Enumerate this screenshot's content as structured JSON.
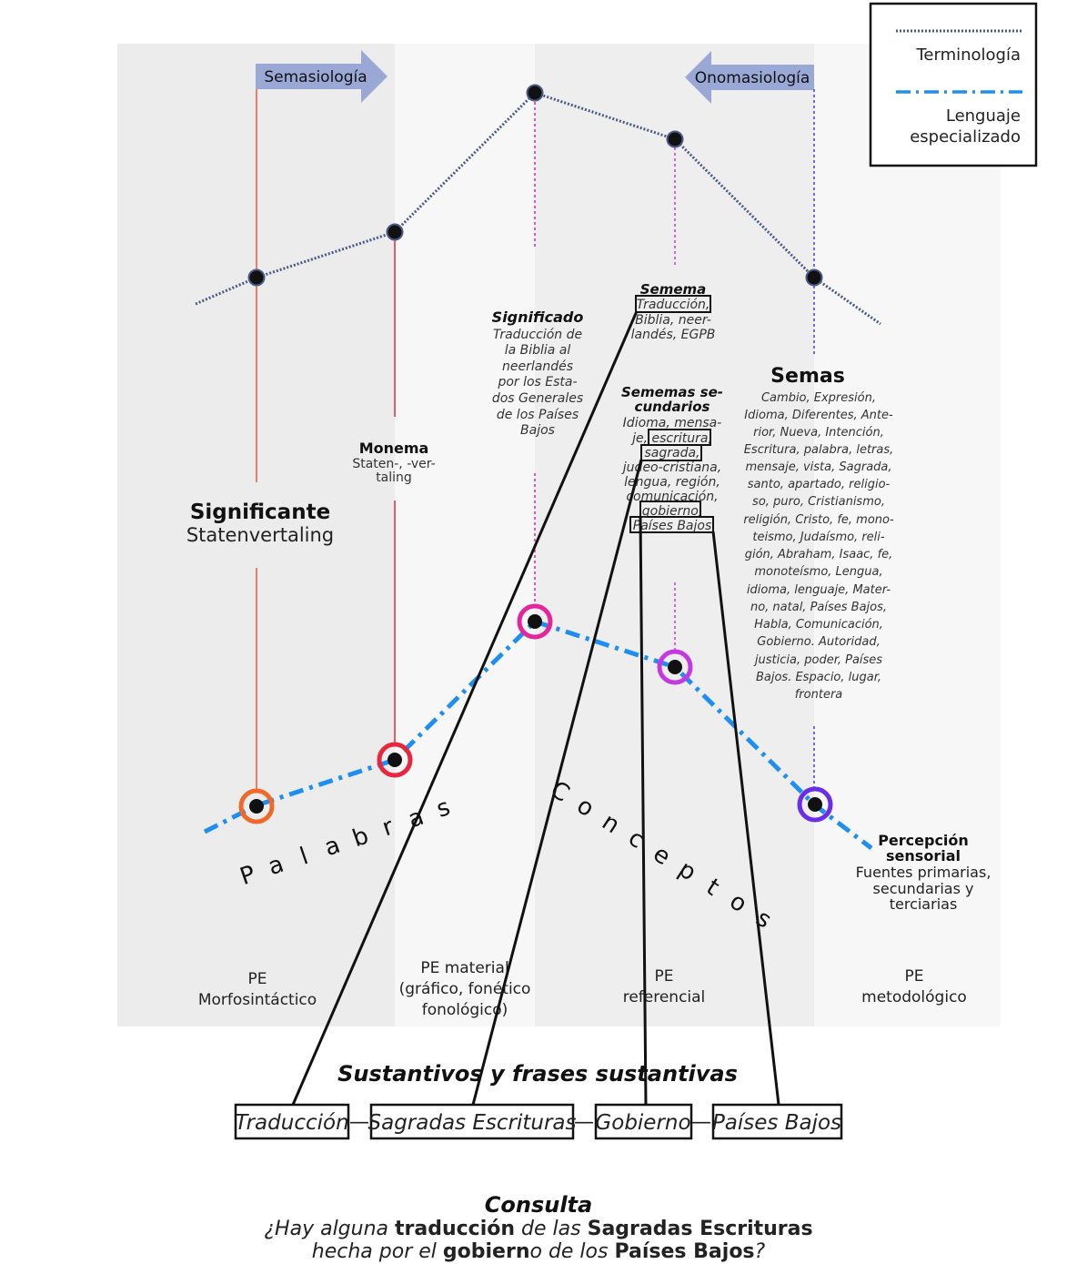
{
  "legend": {
    "terminologia_label": "Terminología",
    "lenguaje_label_line1": "Lenguaje",
    "lenguaje_label_line2": "especializado"
  },
  "arrows": {
    "semasiologia": "Semasiología",
    "onomasiologia": "Onomasiología"
  },
  "significante": {
    "title": "Significante",
    "value": "Statenvertaling"
  },
  "monema": {
    "title": "Monema",
    "line1": "Staten-, -ver-",
    "line2": "taling"
  },
  "significado": {
    "title": "Significado",
    "lines": [
      "Traducción de",
      "la Biblia al",
      "neerlandés",
      "por  los Esta-",
      "dos Generales",
      "de los Países",
      "Bajos"
    ]
  },
  "semema": {
    "title": "Semema",
    "lines": [
      "Traducción,",
      "Biblia, neer-",
      "landés, EGPB"
    ]
  },
  "sememas_secundarios": {
    "title_line1": "Sememas se-",
    "title_line2": "cundarios",
    "lines": [
      "Idioma, mensa-",
      "je, escritura,",
      "sagrada,",
      "judeo-cristiana,",
      "lengua, región,",
      "comunicación,",
      "gobierno,",
      "Países Bajos"
    ]
  },
  "semas": {
    "title": "Semas",
    "lines": [
      "Cambio, Expresión,",
      "Idioma, Diferentes, Ante-",
      "rior, Nueva, Intención,",
      "Escritura, palabra, letras,",
      "mensaje, vista, Sagrada,",
      "santo, apartado, religio-",
      "so, puro, Cristianismo,",
      "religión, Cristo, fe, mono-",
      "teismo, Judaísmo, reli-",
      "gión, Abraham, Isaac, fe,",
      "monoteísmo, Lengua,",
      "idioma, lenguaje, Mater-",
      "no, natal, Países Bajos,",
      "Habla, Comunicación,",
      "Gobierno. Autoridad,",
      "justicia, poder, Países",
      "Bajos. Espacio, lugar,",
      "frontera"
    ]
  },
  "percepcion": {
    "title_line1": "Percepción",
    "title_line2": "sensorial",
    "lines": [
      "Fuentes primarias,",
      "secundarias y",
      "terciarias"
    ]
  },
  "curve_words": {
    "palabras": [
      "P",
      "a",
      "l",
      "a",
      "b",
      "r",
      "a",
      "s"
    ],
    "conceptos": [
      "C",
      "o",
      "n",
      "c",
      "e",
      "p",
      "t",
      "o",
      "s"
    ]
  },
  "columns": [
    {
      "line1": "PE",
      "line2": "Morfosintáctico"
    },
    {
      "line1": "PE material",
      "line2": "(gráfico, fonético",
      "line3": "fonológico)"
    },
    {
      "line1": "PE",
      "line2": "referencial"
    },
    {
      "line1": "PE",
      "line2": "metodológico"
    }
  ],
  "sustantivos": {
    "title": "Sustantivos y frases sustantivas",
    "terms": [
      "Traducción",
      "Sagradas Escrituras",
      "Gobierno",
      "Países Bajos"
    ],
    "separator": "—"
  },
  "consulta": {
    "title": "Consulta",
    "q1": "¿Hay alguna ",
    "q2": "traducción",
    "q3": " de las ",
    "q4": "Sagradas Escrituras",
    "q5": "hecha por el ",
    "q6": "gobiern",
    "q7": "o de los ",
    "q8": "Países Bajos",
    "q9": "?"
  },
  "colors": {
    "terminology": "#4a5a85",
    "specialized": "#1e8ff0",
    "arrow_fill": "#9aa8d6",
    "significante_ring": "#ef6a2a",
    "monema_ring": "#e8263e",
    "significado_ring": "#e4269a",
    "semema_ring": "#c43ae0",
    "semas_ring": "#6a2de8",
    "band_dark": "#ededed",
    "band_light": "#f6f6f6"
  }
}
